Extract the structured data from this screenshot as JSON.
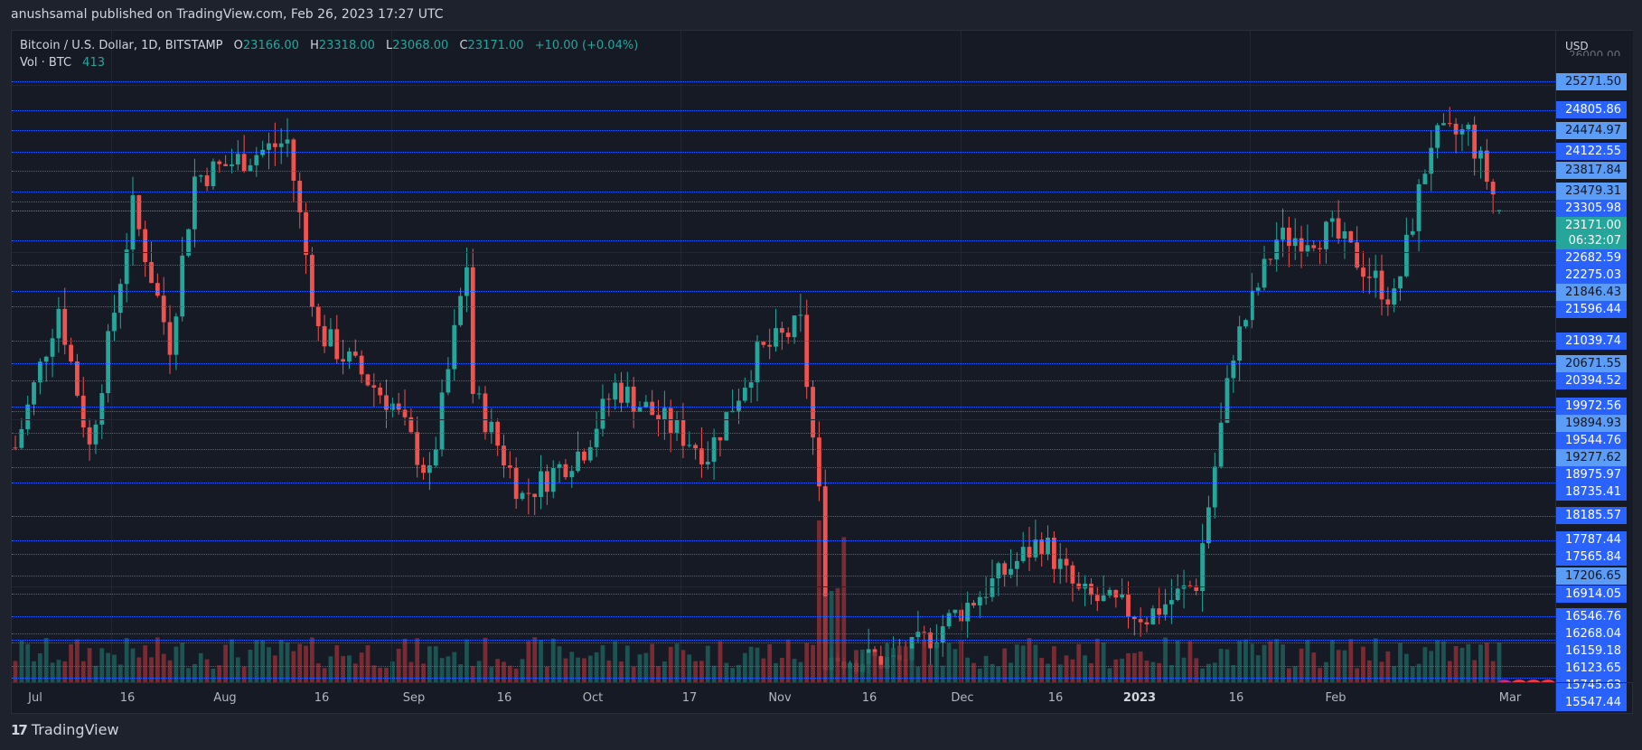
{
  "publisher": "anushsamal published on TradingView.com, Feb 26, 2023 17:27 UTC",
  "legend": {
    "symbol": "Bitcoin / U.S. Dollar, 1D, BITSTAMP",
    "open_label": "O",
    "open": "23166.00",
    "high_label": "H",
    "high": "23318.00",
    "low_label": "L",
    "low": "23068.00",
    "close_label": "C",
    "close": "23171.00",
    "change": "+10.00 (+0.04%)",
    "vol_label": "Vol · BTC",
    "vol_value": "413"
  },
  "price_axis": {
    "currency": "USD",
    "ghost_label": "26000.00",
    "current_price": "23171.00",
    "countdown": "06:32:07",
    "labels": [
      {
        "value": "25271.50",
        "style": "light"
      },
      {
        "value": "24805.86",
        "style": "dark"
      },
      {
        "value": "24474.97",
        "style": "light"
      },
      {
        "value": "24122.55",
        "style": "dark"
      },
      {
        "value": "23817.84",
        "style": "light"
      },
      {
        "value": "23479.31",
        "style": "light"
      },
      {
        "value": "23305.98",
        "style": "dark"
      },
      {
        "value": "22682.59",
        "style": "dark"
      },
      {
        "value": "22275.03",
        "style": "dark"
      },
      {
        "value": "21846.43",
        "style": "light"
      },
      {
        "value": "21596.44",
        "style": "dark"
      },
      {
        "value": "21039.74",
        "style": "dark"
      },
      {
        "value": "20671.55",
        "style": "light"
      },
      {
        "value": "20394.52",
        "style": "dark"
      },
      {
        "value": "19972.56",
        "style": "dark"
      },
      {
        "value": "19894.93",
        "style": "light"
      },
      {
        "value": "19544.76",
        "style": "dark"
      },
      {
        "value": "19277.62",
        "style": "light"
      },
      {
        "value": "18975.97",
        "style": "dark"
      },
      {
        "value": "18735.41",
        "style": "dark"
      },
      {
        "value": "18185.57",
        "style": "dark"
      },
      {
        "value": "17787.44",
        "style": "dark"
      },
      {
        "value": "17565.84",
        "style": "dark"
      },
      {
        "value": "17206.65",
        "style": "light"
      },
      {
        "value": "16914.05",
        "style": "dark"
      },
      {
        "value": "16546.76",
        "style": "dark"
      },
      {
        "value": "16268.04",
        "style": "dark"
      },
      {
        "value": "16159.18",
        "style": "dark"
      },
      {
        "value": "16123.65",
        "style": "dark"
      },
      {
        "value": "15745.63",
        "style": "dark"
      },
      {
        "value": "15547.44",
        "style": "dark"
      }
    ]
  },
  "time_axis": {
    "labels": [
      {
        "text": "Jul",
        "bold": false
      },
      {
        "text": "16",
        "bold": false
      },
      {
        "text": "Aug",
        "bold": false
      },
      {
        "text": "16",
        "bold": false
      },
      {
        "text": "Sep",
        "bold": false
      },
      {
        "text": "16",
        "bold": false
      },
      {
        "text": "Oct",
        "bold": false
      },
      {
        "text": "17",
        "bold": false
      },
      {
        "text": "Nov",
        "bold": false
      },
      {
        "text": "16",
        "bold": false
      },
      {
        "text": "Dec",
        "bold": false
      },
      {
        "text": "16",
        "bold": false
      },
      {
        "text": "2023",
        "bold": true
      },
      {
        "text": "16",
        "bold": false
      },
      {
        "text": "Feb",
        "bold": false
      },
      {
        "text": "Mar",
        "bold": false
      }
    ]
  },
  "brand": {
    "logo_text": "TradingView",
    "logo_mark": "17"
  },
  "colors": {
    "up": "#26a69a",
    "down": "#ef5350",
    "vol_up": "#1e5e5a",
    "vol_down": "#8a2f35",
    "level_line": "#2962ff",
    "background": "#161a25"
  },
  "chart_data": {
    "type": "candlestick",
    "title": "Bitcoin / U.S. Dollar, 1D, BITSTAMP",
    "xlabel": "",
    "ylabel": "USD",
    "ylim": [
      15400,
      26000
    ],
    "x_range": [
      "2022-07-01",
      "2023-02-26"
    ],
    "grid": true,
    "horizontal_levels": [
      25271.5,
      24805.86,
      24474.97,
      24122.55,
      23817.84,
      23479.31,
      23305.98,
      22682.59,
      22275.03,
      21846.43,
      21596.44,
      21039.74,
      20671.55,
      20394.52,
      19972.56,
      19894.93,
      19544.76,
      19277.62,
      18975.97,
      18735.41,
      18185.57,
      17787.44,
      17565.84,
      17206.65,
      16914.05,
      16546.76,
      16268.04,
      16159.18,
      16123.65,
      15745.63,
      15547.44
    ],
    "last_bar": {
      "open": 23166.0,
      "high": 23318.0,
      "low": 23068.0,
      "close": 23171.0,
      "volume": 413,
      "change": 10.0,
      "change_pct": 0.04
    },
    "series_close_approx": [
      {
        "date": "2022-07-01",
        "close": 19300
      },
      {
        "date": "2022-07-08",
        "close": 21600
      },
      {
        "date": "2022-07-13",
        "close": 19300
      },
      {
        "date": "2022-07-20",
        "close": 23200
      },
      {
        "date": "2022-07-26",
        "close": 21000
      },
      {
        "date": "2022-07-30",
        "close": 23700
      },
      {
        "date": "2022-08-14",
        "close": 24300
      },
      {
        "date": "2022-08-19",
        "close": 21200
      },
      {
        "date": "2022-08-31",
        "close": 20000
      },
      {
        "date": "2022-09-06",
        "close": 18800
      },
      {
        "date": "2022-09-12",
        "close": 22300
      },
      {
        "date": "2022-09-13",
        "close": 20200
      },
      {
        "date": "2022-09-21",
        "close": 18500
      },
      {
        "date": "2022-10-01",
        "close": 19300
      },
      {
        "date": "2022-10-06",
        "close": 20300
      },
      {
        "date": "2022-10-21",
        "close": 19200
      },
      {
        "date": "2022-10-29",
        "close": 20800
      },
      {
        "date": "2022-11-05",
        "close": 21300
      },
      {
        "date": "2022-11-08",
        "close": 18500
      },
      {
        "date": "2022-11-09",
        "close": 15900
      },
      {
        "date": "2022-11-21",
        "close": 15800
      },
      {
        "date": "2022-12-05",
        "close": 17000
      },
      {
        "date": "2022-12-14",
        "close": 17800
      },
      {
        "date": "2022-12-20",
        "close": 16900
      },
      {
        "date": "2022-12-31",
        "close": 16550
      },
      {
        "date": "2023-01-08",
        "close": 17100
      },
      {
        "date": "2023-01-14",
        "close": 20900
      },
      {
        "date": "2023-01-21",
        "close": 22700
      },
      {
        "date": "2023-01-30",
        "close": 22800
      },
      {
        "date": "2023-02-09",
        "close": 21700
      },
      {
        "date": "2023-02-15",
        "close": 24300
      },
      {
        "date": "2023-02-21",
        "close": 24450
      },
      {
        "date": "2023-02-26",
        "close": 23171
      }
    ]
  }
}
